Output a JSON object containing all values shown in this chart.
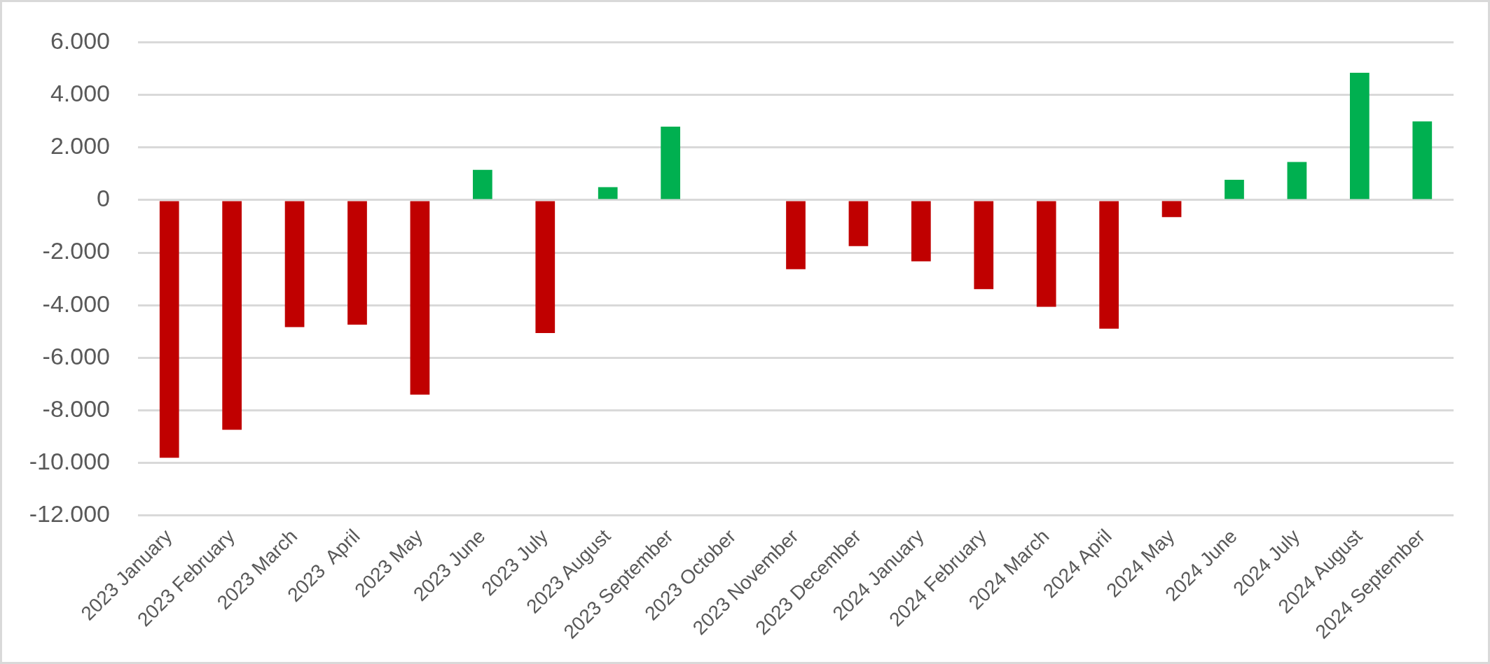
{
  "chart_data": {
    "type": "bar",
    "categories": [
      "2023 January",
      "2023 February",
      "2023 March",
      "2023  April",
      "2023 May",
      "2023 June",
      "2023 July",
      "2023 August",
      "2023 September",
      "2023 October",
      "2023 November",
      "2023 December",
      "2024 January",
      "2024 February",
      "2024 March",
      "2024 April",
      "2024 May",
      "2024 June",
      "2024 July",
      "2024 August",
      "2024 September"
    ],
    "values": [
      -9800,
      -8740,
      -4830,
      -4740,
      -7400,
      1150,
      -5060,
      490,
      2790,
      null,
      -2630,
      -1750,
      -2330,
      -3390,
      -4060,
      -4890,
      -650,
      770,
      1450,
      4840,
      2990
    ],
    "colors": [
      "#c00000",
      "#c00000",
      "#c00000",
      "#c00000",
      "#c00000",
      "#00b050",
      "#c00000",
      "#00b050",
      "#00b050",
      "#c00000",
      "#c00000",
      "#c00000",
      "#c00000",
      "#c00000",
      "#c00000",
      "#c00000",
      "#c00000",
      "#00b050",
      "#00b050",
      "#00b050",
      "#00b050"
    ],
    "ylim": [
      -12000,
      6000
    ],
    "yticks": [
      {
        "value": -12000,
        "label": "-12.000"
      },
      {
        "value": -10000,
        "label": "-10.000"
      },
      {
        "value": -8000,
        "label": "-8.000"
      },
      {
        "value": -6000,
        "label": "-6.000"
      },
      {
        "value": -4000,
        "label": "-4.000"
      },
      {
        "value": -2000,
        "label": "-2.000"
      },
      0,
      {
        "value": 2000,
        "label": "2.000"
      },
      {
        "value": 4000,
        "label": "4.000"
      },
      {
        "value": 6000,
        "label": "6.000"
      }
    ],
    "grid": "y"
  }
}
